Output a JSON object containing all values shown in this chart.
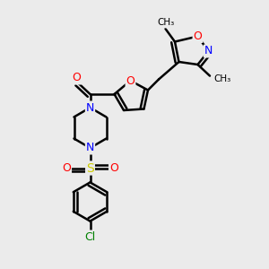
{
  "bg_color": "#ebebeb",
  "bond_color": "black",
  "bond_width": 1.8,
  "atom_colors": {
    "C": "black",
    "N": "blue",
    "O": "red",
    "S": "#cccc00",
    "Cl": "green"
  },
  "font_size": 9,
  "title": ""
}
